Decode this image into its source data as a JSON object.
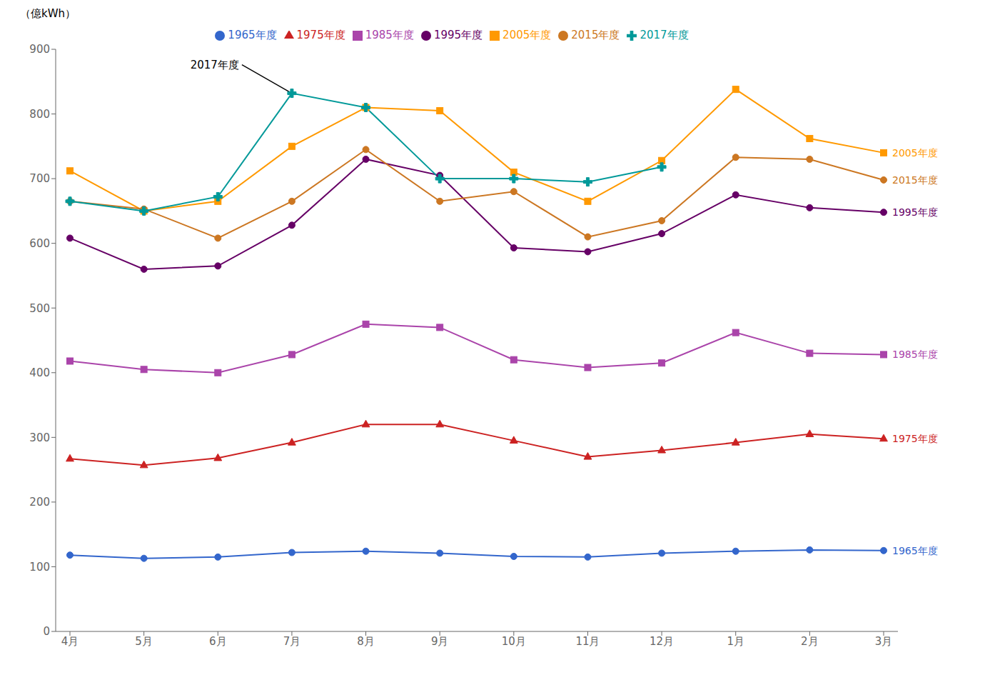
{
  "chart_data": {
    "type": "line",
    "ylabel": "（億kWh）",
    "categories": [
      "4月",
      "5月",
      "6月",
      "7月",
      "8月",
      "9月",
      "10月",
      "11月",
      "12月",
      "1月",
      "2月",
      "3月"
    ],
    "series": [
      {
        "name": "1965年度",
        "color": "#3366CC",
        "marker": "circle",
        "values": [
          118,
          113,
          115,
          122,
          124,
          121,
          116,
          115,
          121,
          124,
          126,
          125
        ]
      },
      {
        "name": "1975年度",
        "color": "#CC2222",
        "marker": "triangle",
        "values": [
          267,
          257,
          268,
          292,
          320,
          320,
          295,
          270,
          280,
          292,
          305,
          298
        ]
      },
      {
        "name": "1985年度",
        "color": "#AA44AA",
        "marker": "square",
        "values": [
          418,
          405,
          400,
          428,
          475,
          470,
          420,
          408,
          415,
          462,
          430,
          428
        ]
      },
      {
        "name": "1995年度",
        "color": "#660066",
        "marker": "circle",
        "values": [
          608,
          560,
          565,
          628,
          730,
          705,
          593,
          587,
          615,
          675,
          655,
          648
        ]
      },
      {
        "name": "2005年度",
        "color": "#FF9900",
        "marker": "square",
        "values": [
          712,
          650,
          665,
          750,
          810,
          805,
          710,
          665,
          728,
          838,
          762,
          740
        ]
      },
      {
        "name": "2015年度",
        "color": "#CC7722",
        "marker": "circle",
        "values": [
          665,
          653,
          608,
          665,
          745,
          665,
          680,
          610,
          635,
          733,
          730,
          698
        ]
      },
      {
        "name": "2017年度",
        "color": "#009999",
        "marker": "plus",
        "values": [
          665,
          650,
          672,
          832,
          810,
          700,
          700,
          695,
          718,
          null,
          null,
          null
        ]
      }
    ],
    "ylim": [
      0,
      900
    ],
    "yticks": [
      0,
      100,
      200,
      300,
      400,
      500,
      600,
      700,
      800,
      900
    ],
    "grid": false,
    "legend": "top",
    "annotations": [
      {
        "text": "2017年度",
        "x": "7月",
        "y": 832
      },
      {
        "text": "2005年度",
        "x": "3月",
        "y": 740,
        "color": "#FF9900"
      },
      {
        "text": "2015年度",
        "x": "3月",
        "y": 698,
        "color": "#CC7722"
      },
      {
        "text": "1995年度",
        "x": "3月",
        "y": 648,
        "color": "#660066"
      },
      {
        "text": "1985年度",
        "x": "3月",
        "y": 428,
        "color": "#AA44AA"
      },
      {
        "text": "1975年度",
        "x": "3月",
        "y": 298,
        "color": "#CC2222"
      },
      {
        "text": "1965年度",
        "x": "3月",
        "y": 125,
        "color": "#3366CC"
      }
    ]
  }
}
